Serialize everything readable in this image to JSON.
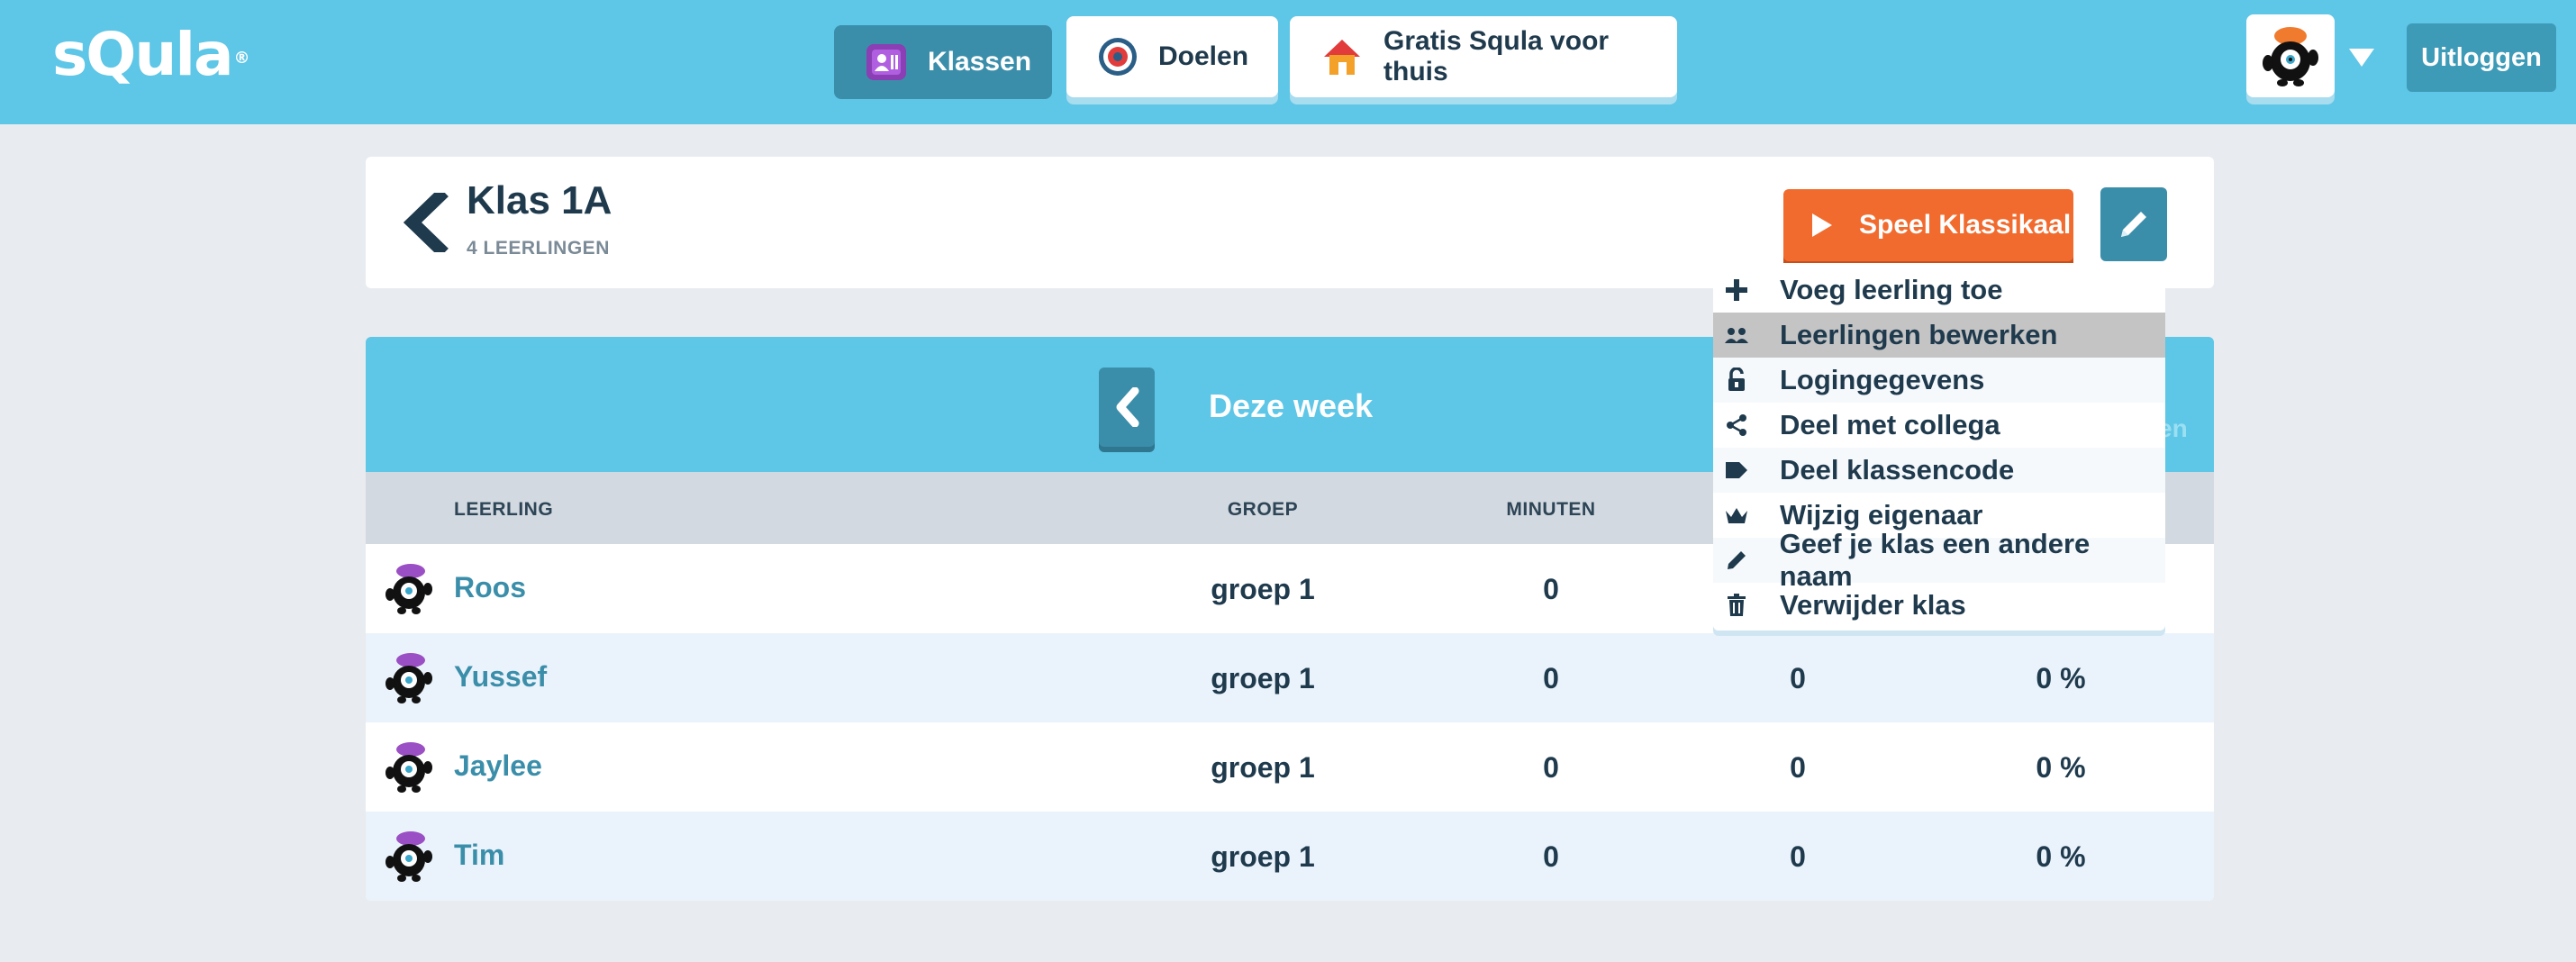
{
  "app": {
    "logo_text": "sQula",
    "logo_mark": "®"
  },
  "nav": {
    "tabs": [
      {
        "label": "Klassen",
        "icon": "class-card-icon",
        "active": true
      },
      {
        "label": "Doelen",
        "icon": "target-icon",
        "active": false
      },
      {
        "label": "Gratis Squla voor thuis",
        "icon": "house-icon",
        "active": false
      }
    ],
    "logout_label": "Uitloggen",
    "user_avatar_icon": "monster-avatar-icon"
  },
  "klas": {
    "title": "Klas 1A",
    "subtitle": "4 LEERLINGEN",
    "play_label": "Speel Klassikaal",
    "edit_icon": "pencil-icon"
  },
  "menu": {
    "items": [
      {
        "label": "Voeg leerling toe",
        "icon": "plus-icon"
      },
      {
        "label": "Leerlingen bewerken",
        "icon": "users-icon"
      },
      {
        "label": "Logingegevens",
        "icon": "unlock-icon"
      },
      {
        "label": "Deel met collega",
        "icon": "share-icon"
      },
      {
        "label": "Deel klassencode",
        "icon": "tag-icon"
      },
      {
        "label": "Wijzig eigenaar",
        "icon": "crown-icon"
      },
      {
        "label": "Geef je klas een andere naam",
        "icon": "pencil-icon"
      },
      {
        "label": "Verwijder klas",
        "icon": "trash-icon"
      }
    ],
    "hovered_index": 1
  },
  "week": {
    "label": "Deze week",
    "right_partial": "en"
  },
  "table": {
    "headers": {
      "name": "LEERLING",
      "groep": "GROEP",
      "minuten": "MINUTEN"
    },
    "rows": [
      {
        "name": "Roos",
        "groep": "groep 1",
        "minuten": "0",
        "col4": "",
        "col5": ""
      },
      {
        "name": "Yussef",
        "groep": "groep 1",
        "minuten": "0",
        "col4": "0",
        "col5": "0 %"
      },
      {
        "name": "Jaylee",
        "groep": "groep 1",
        "minuten": "0",
        "col4": "0",
        "col5": "0 %"
      },
      {
        "name": "Tim",
        "groep": "groep 1",
        "minuten": "0",
        "col4": "0",
        "col5": "0 %"
      }
    ]
  },
  "colors": {
    "topbar": "#5ec6e6",
    "accent_dark": "#3b8eaa",
    "orange": "#f26b2e",
    "text_dark": "#1f3a4d"
  }
}
